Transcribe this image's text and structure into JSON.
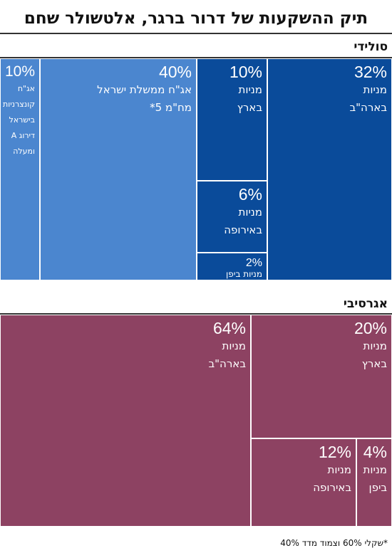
{
  "title": "תיק ההשקעות של דרור ברגר, אלטשולר שחם",
  "footnote": "*שקלי 60% וצמוד מדד 40%",
  "colors": {
    "solid_dark": "#0a4b9a",
    "solid_mid": "#2a66b8",
    "solid_light": "#4b86cf",
    "aggressive": "#8d4262",
    "border": "#ffffff",
    "rule": "#333333"
  },
  "chart_data": [
    {
      "type": "treemap",
      "name": "סולידי",
      "items": [
        {
          "pct": "32%",
          "value": 32,
          "label": "מניות\nבארה\"ב",
          "color": "#0a4b9a"
        },
        {
          "pct": "10%",
          "value": 10,
          "label": "מניות\nבארץ",
          "color": "#0a4b9a"
        },
        {
          "pct": "6%",
          "value": 6,
          "label": "מניות\nבאירופה",
          "color": "#0a4b9a"
        },
        {
          "pct": "2%",
          "value": 2,
          "label": "מניות ביפן",
          "color": "#0a4b9a"
        },
        {
          "pct": "40%",
          "value": 40,
          "label": "אג\"ח ממשלת ישראל\nמח\"מ 5*",
          "color": "#3b78c6"
        },
        {
          "pct": "10%",
          "value": 10,
          "label": "אג\"ח\nקונצרניות\nבישראל\nדירוג A\nומעלה",
          "color": "#3b78c6"
        }
      ]
    },
    {
      "type": "treemap",
      "name": "אגרסיבי",
      "items": [
        {
          "pct": "64%",
          "value": 64,
          "label": "מניות\nבארה\"ב",
          "color": "#8d4262"
        },
        {
          "pct": "20%",
          "value": 20,
          "label": "מניות\nבארץ",
          "color": "#8d4262"
        },
        {
          "pct": "12%",
          "value": 12,
          "label": "מניות\nבאירופה",
          "color": "#8d4262"
        },
        {
          "pct": "4%",
          "value": 4,
          "label": "מניות\nביפן",
          "color": "#8d4262"
        }
      ]
    }
  ]
}
